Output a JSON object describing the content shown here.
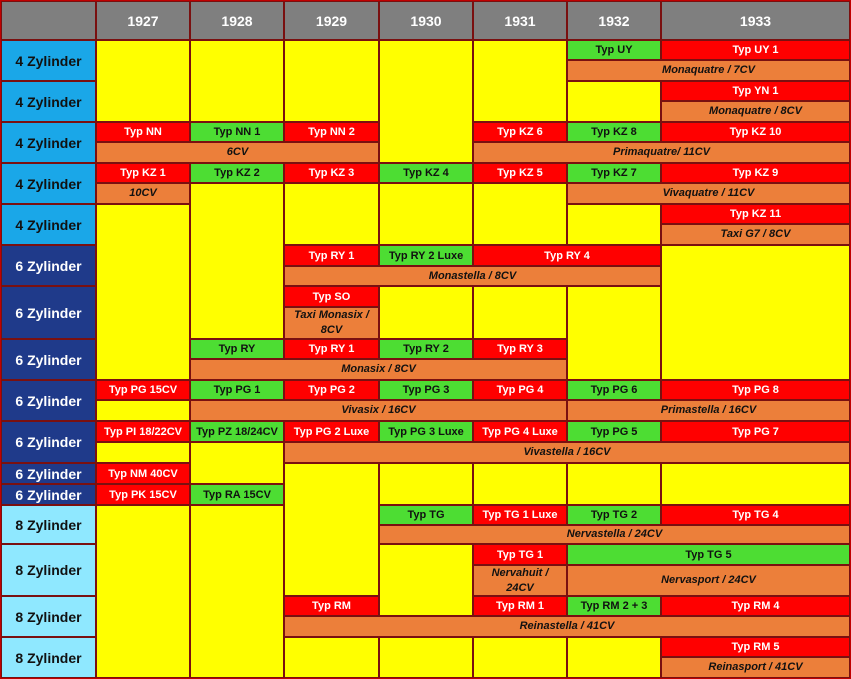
{
  "header": {
    "years": [
      "1927",
      "1928",
      "1929",
      "1930",
      "1931",
      "1932",
      "1933"
    ]
  },
  "rows": [
    "4 Zylinder",
    "4 Zylinder",
    "4 Zylinder",
    "4 Zylinder",
    "4 Zylinder",
    "6 Zylinder",
    "6 Zylinder",
    "6 Zylinder",
    "6 Zylinder",
    "6 Zylinder",
    "6 Zylinder",
    "6 Zylinder",
    "8 Zylinder",
    "8 Zylinder",
    "8 Zylinder",
    "8 Zylinder"
  ],
  "models": [
    "Typ UY",
    "Typ UY 1",
    "Monaquatre / 7CV",
    "Typ YN 1",
    "Monaquatre / 8CV",
    "Typ NN",
    "Typ NN 1",
    "Typ NN 2",
    "Typ KZ 6",
    "Typ KZ 8",
    "Typ KZ 10",
    "6CV",
    "Primaquatre/ 11CV",
    "Typ KZ 1",
    "Typ KZ 2",
    "Typ KZ 3",
    "Typ KZ 4",
    "Typ KZ 5",
    "Typ KZ 7",
    "Typ KZ 9",
    "10CV",
    "Vivaquatre / 11CV",
    "Typ KZ 11",
    "Taxi G7 / 8CV",
    "Typ RY 1",
    "Typ RY 2 Luxe",
    "Typ RY 4",
    "Monastella / 8CV",
    "Typ SO",
    "Taxi Monasix / 8CV",
    "Typ RY",
    "Typ RY 1",
    "Typ RY 2",
    "Typ RY 3",
    "Monasix / 8CV",
    "Typ PG 15CV",
    "Typ PG 1",
    "Typ PG 2",
    "Typ PG 3",
    "Typ PG 4",
    "Typ PG 6",
    "Typ PG 8",
    "Vivasix / 16CV",
    "Primastella / 16CV",
    "Typ PI 18/22CV",
    "Typ PZ 18/24CV",
    "Typ PG 2 Luxe",
    "Typ PG 3 Luxe",
    "Typ PG 4 Luxe",
    "Typ PG 5",
    "Typ PG 7",
    "Vivastella / 16CV",
    "Typ NM 40CV",
    "Typ PK 15CV",
    "Typ RA 15CV",
    "Typ TG",
    "Typ TG 1 Luxe",
    "Typ TG 2",
    "Typ TG 4",
    "Nervastella / 24CV",
    "Typ TG 1",
    "Typ TG 5",
    "Nervahuit / 24CV",
    "Nervasport / 24CV",
    "Typ RM",
    "Typ RM 1",
    "Typ RM 2 + 3",
    "Typ RM 4",
    "Reinastella / 41CV",
    "Typ RM 5",
    "Reinasport / 41CV"
  ]
}
